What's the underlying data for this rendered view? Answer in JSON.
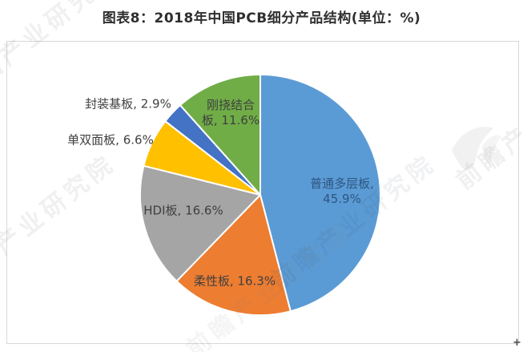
{
  "chart_data": {
    "type": "pie",
    "title": "图表8：2018年中国PCB细分产品结构(单位：%)",
    "unit": "%",
    "start_angle": "top",
    "direction": "clockwise",
    "legend": "none",
    "slices": [
      {
        "label": "普通多层板",
        "value": 45.9,
        "color": "#5B9BD5",
        "display": "普通多层板,\n45.9%"
      },
      {
        "label": "柔性板",
        "value": 16.3,
        "color": "#ED7D31",
        "display": "柔性板, 16.3%"
      },
      {
        "label": "HDI板",
        "value": 16.6,
        "color": "#A5A5A5",
        "display": "HDI板, 16.6%"
      },
      {
        "label": "单双面板",
        "value": 6.6,
        "color": "#FFC000",
        "display": "单双面板, 6.6%"
      },
      {
        "label": "封装基板",
        "value": 2.9,
        "color": "#4472C4",
        "display": "封装基板, 2.9%"
      },
      {
        "label": "刚挠结合板",
        "value": 11.6,
        "color": "#70AD47",
        "display": "刚挠结合\n板, 11.6%"
      }
    ]
  },
  "watermark": {
    "text": "前瞻产业研究院",
    "logo": "qianzhan-bird-logo",
    "corner_artifact": "+"
  }
}
